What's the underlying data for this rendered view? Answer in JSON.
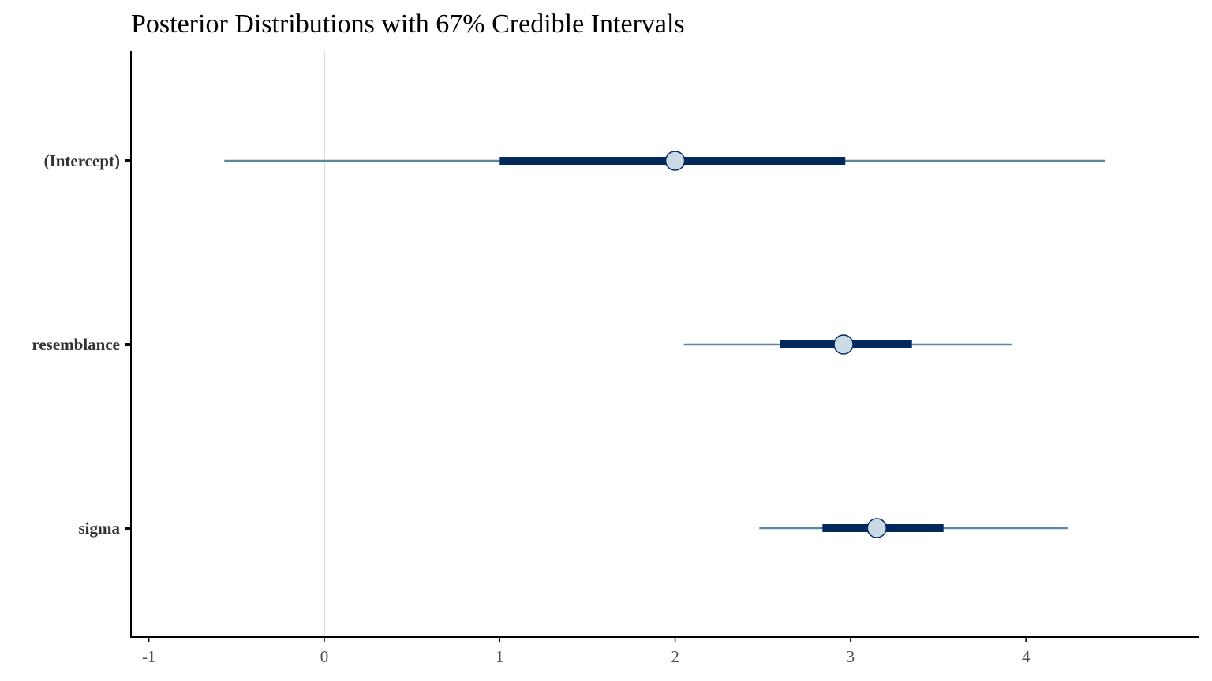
{
  "chart_data": {
    "type": "interval",
    "title": "Posterior Distributions with 67% Credible Intervals",
    "xlabel": "",
    "ylabel": "",
    "xlim": [
      -1.1,
      4.98
    ],
    "x_ticks": [
      -1,
      0,
      1,
      2,
      3,
      4
    ],
    "x_tick_labels": [
      "-1",
      "0",
      "1",
      "2",
      "3",
      "4"
    ],
    "reference_line_x": 0,
    "grid": false,
    "legend": "none",
    "parameters": [
      {
        "name": "(Intercept)",
        "median": 2.0,
        "inner": [
          1.0,
          2.97
        ],
        "outer": [
          -0.57,
          4.45
        ]
      },
      {
        "name": "resemblance",
        "median": 2.96,
        "inner": [
          2.6,
          3.35
        ],
        "outer": [
          2.05,
          3.92
        ]
      },
      {
        "name": "sigma",
        "median": 3.15,
        "inner": [
          2.84,
          3.53
        ],
        "outer": [
          2.48,
          4.24
        ]
      }
    ],
    "colors": {
      "outer_interval": "#5b86a4",
      "inner_interval": "#03295c",
      "point_fill": "#cadbe7",
      "point_stroke": "#03295c",
      "reference_line": "#dddddd",
      "axis": "#000000",
      "tick_label_x": "#4d4d4d",
      "tick_label_y": "#333333"
    }
  }
}
